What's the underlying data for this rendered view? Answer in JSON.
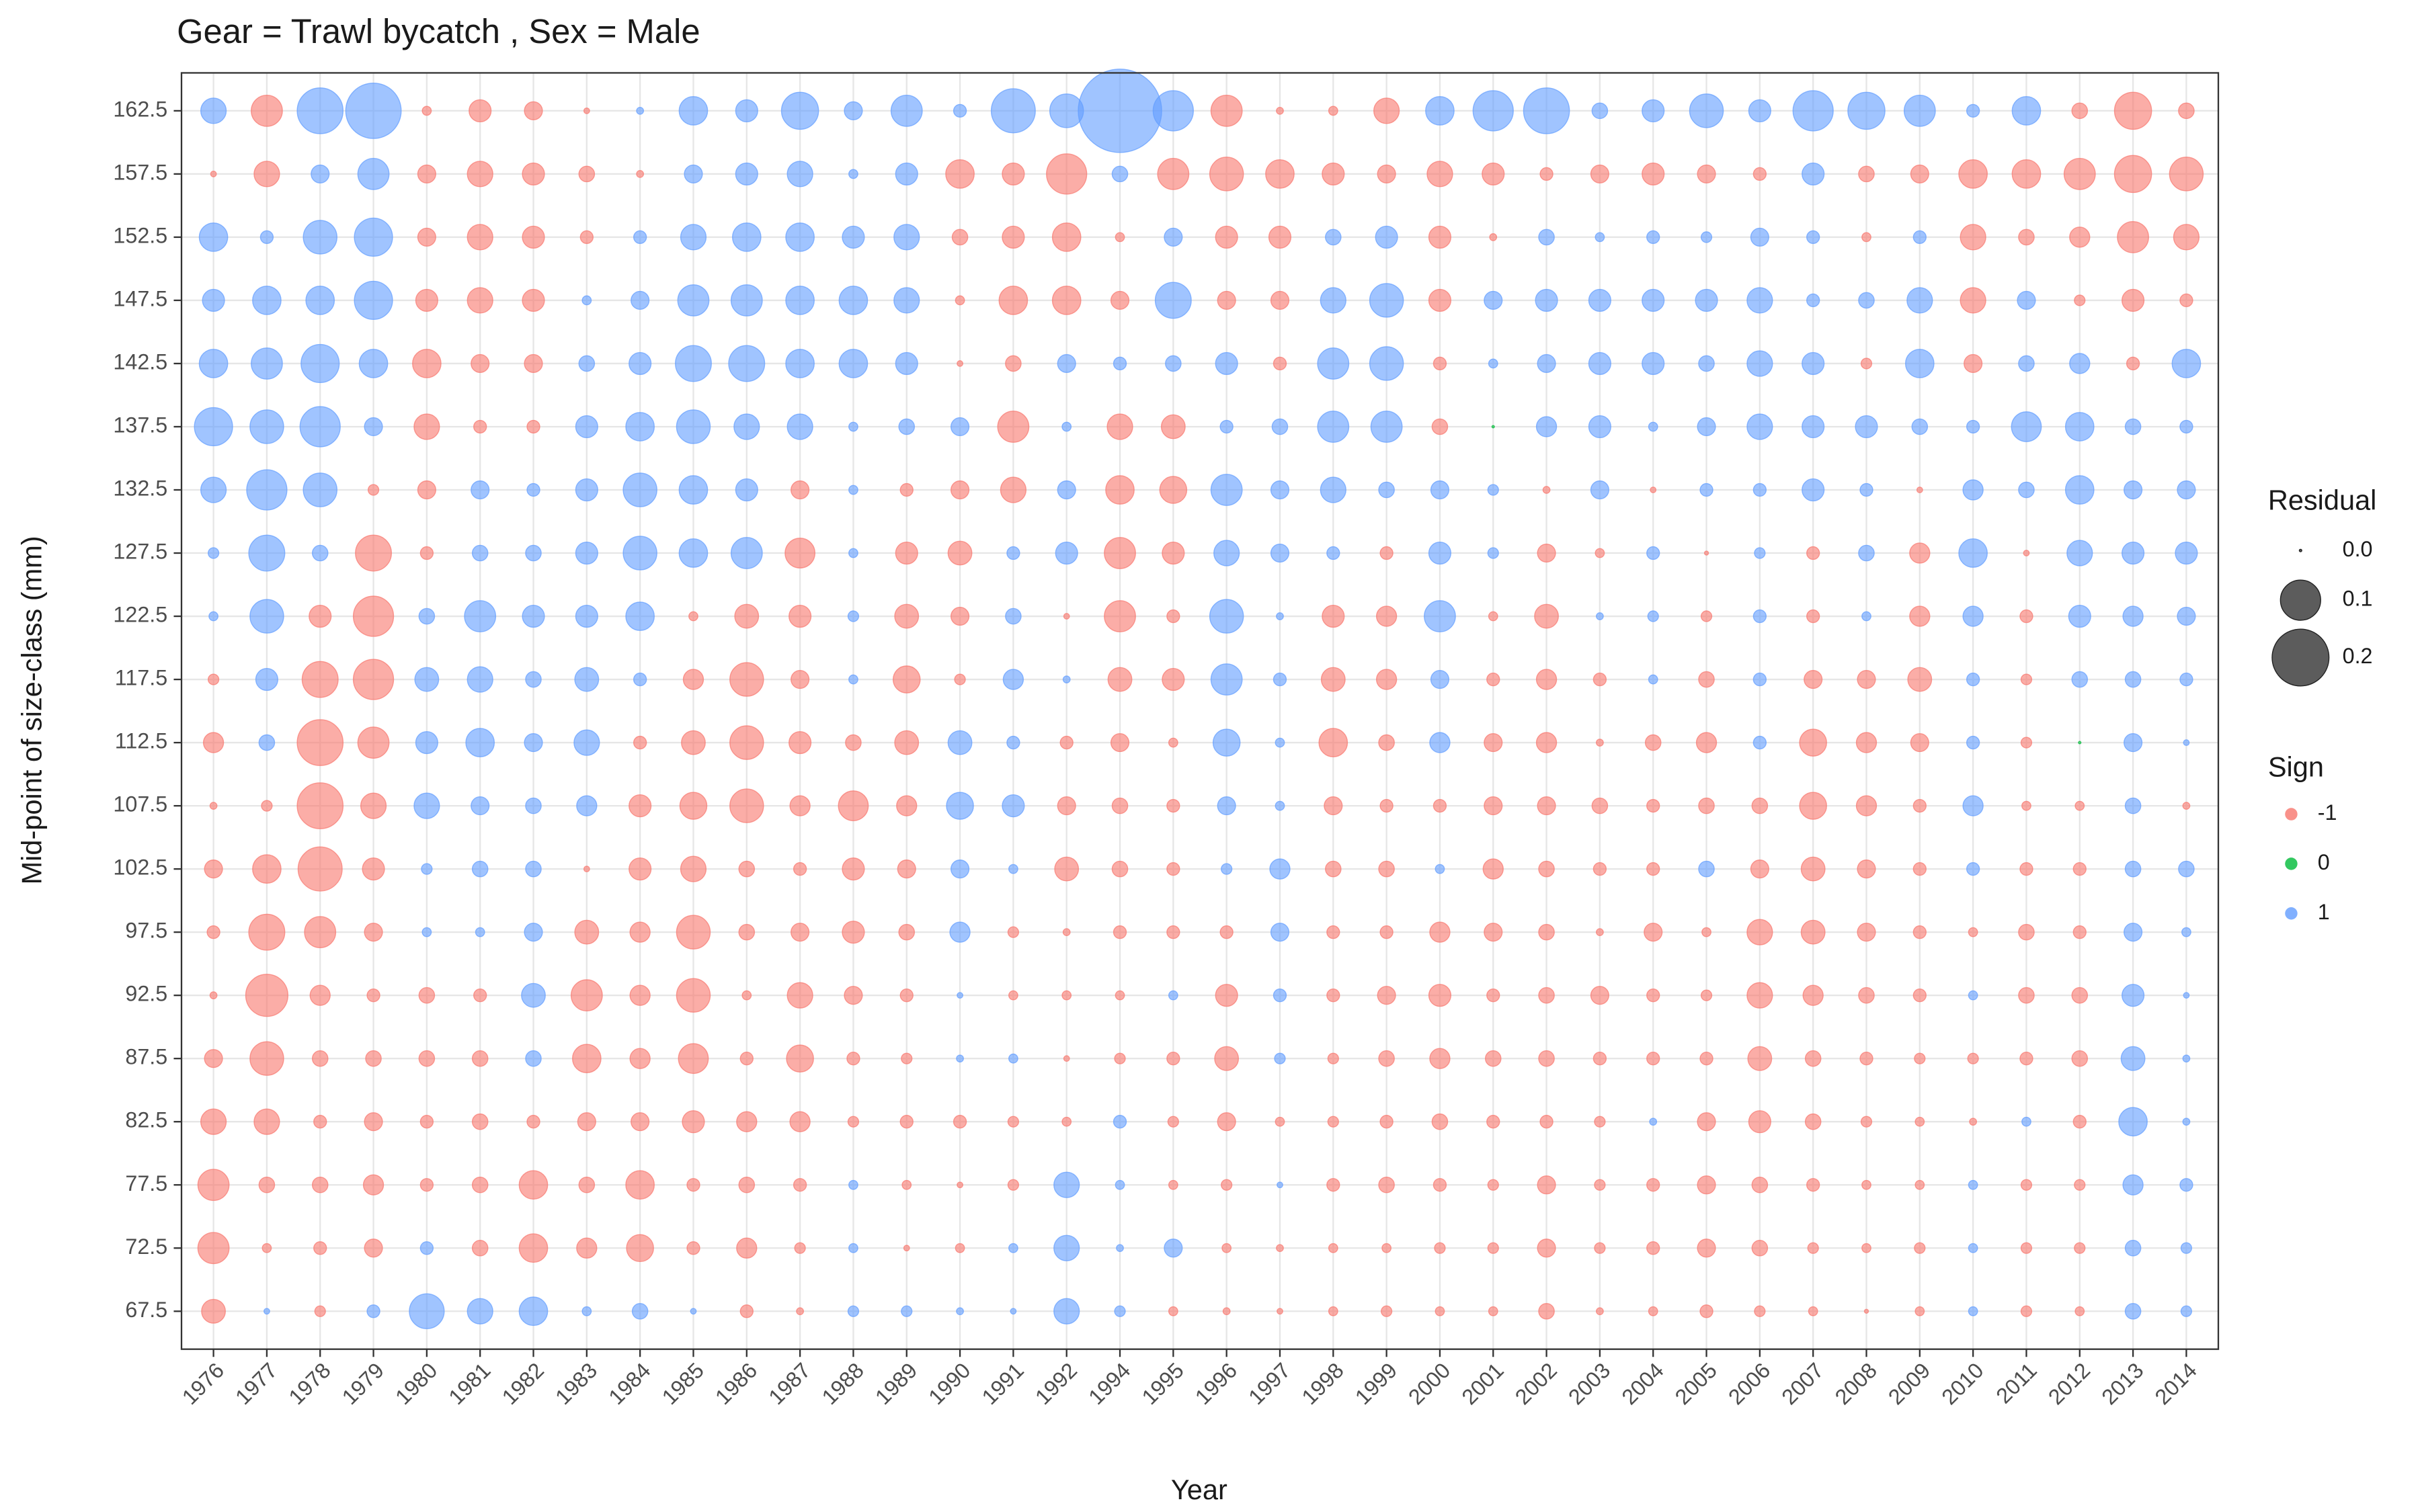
{
  "chart_data": {
    "type": "bubble",
    "title": "Gear = Trawl bycatch , Sex = Male",
    "x_label": "Year",
    "y_label": "Mid-point of size-class (mm)",
    "categories": [
      "1976",
      "1977",
      "1978",
      "1979",
      "1980",
      "1981",
      "1982",
      "1983",
      "1984",
      "1985",
      "1986",
      "1987",
      "1988",
      "1989",
      "1990",
      "1991",
      "1992",
      "1994",
      "1995",
      "1996",
      "1997",
      "1998",
      "1999",
      "2000",
      "2001",
      "2002",
      "2003",
      "2004",
      "2005",
      "2006",
      "2007",
      "2008",
      "2009",
      "2010",
      "2011",
      "2012",
      "2013",
      "2014"
    ],
    "y_categories": [
      "162.5",
      "157.5",
      "152.5",
      "147.5",
      "142.5",
      "137.5",
      "132.5",
      "127.5",
      "122.5",
      "117.5",
      "112.5",
      "107.5",
      "102.5",
      "97.5",
      "92.5",
      "87.5",
      "82.5",
      "77.5",
      "72.5",
      "67.5"
    ],
    "values": [
      [
        0.04,
        -0.06,
        0.13,
        0.19,
        -0.005,
        -0.03,
        -0.02,
        -0.002,
        0.003,
        0.05,
        0.03,
        0.085,
        0.02,
        0.06,
        0.01,
        0.12,
        0.07,
        0.43,
        0.1,
        -0.06,
        -0.003,
        -0.005,
        -0.04,
        0.05,
        0.1,
        0.13,
        0.015,
        0.03,
        0.07,
        0.03,
        0.1,
        0.085,
        0.06,
        0.01,
        0.05,
        -0.015,
        -0.085,
        -0.015
      ],
      [
        -0.002,
        -0.04,
        0.02,
        0.06,
        -0.02,
        -0.04,
        -0.03,
        -0.015,
        -0.003,
        0.02,
        0.03,
        0.04,
        0.005,
        0.03,
        -0.05,
        -0.03,
        -0.1,
        0.015,
        -0.06,
        -0.07,
        -0.05,
        -0.03,
        -0.02,
        -0.04,
        -0.03,
        -0.01,
        -0.02,
        -0.03,
        -0.02,
        -0.01,
        0.03,
        -0.015,
        -0.02,
        -0.05,
        -0.05,
        -0.06,
        -0.085,
        -0.07
      ],
      [
        0.05,
        0.01,
        0.07,
        0.09,
        -0.02,
        -0.04,
        -0.03,
        -0.01,
        0.01,
        0.04,
        0.05,
        0.05,
        0.03,
        0.04,
        -0.015,
        -0.03,
        -0.05,
        -0.005,
        0.02,
        -0.03,
        -0.03,
        0.015,
        0.03,
        -0.03,
        -0.003,
        0.015,
        0.005,
        0.01,
        0.007,
        0.02,
        0.01,
        -0.005,
        0.01,
        -0.04,
        -0.015,
        -0.025,
        -0.06,
        -0.04
      ],
      [
        0.03,
        0.05,
        0.05,
        0.09,
        -0.03,
        -0.04,
        -0.03,
        0.005,
        0.02,
        0.06,
        0.06,
        0.05,
        0.05,
        0.04,
        -0.005,
        -0.05,
        -0.05,
        -0.02,
        0.08,
        -0.02,
        -0.02,
        0.04,
        0.07,
        -0.03,
        0.02,
        0.03,
        0.03,
        0.03,
        0.03,
        0.04,
        0.01,
        0.015,
        0.04,
        -0.04,
        0.02,
        -0.007,
        -0.03,
        -0.01
      ],
      [
        0.05,
        0.06,
        0.09,
        0.05,
        -0.05,
        -0.02,
        -0.02,
        0.015,
        0.03,
        0.08,
        0.08,
        0.05,
        0.05,
        0.03,
        -0.002,
        -0.015,
        0.02,
        0.01,
        0.015,
        0.03,
        -0.01,
        0.06,
        0.07,
        -0.01,
        0.005,
        0.02,
        0.03,
        0.03,
        0.015,
        0.04,
        0.03,
        -0.007,
        0.05,
        -0.02,
        0.015,
        0.025,
        -0.01,
        0.05
      ],
      [
        0.09,
        0.07,
        0.1,
        0.02,
        -0.04,
        -0.01,
        -0.01,
        0.03,
        0.05,
        0.07,
        0.04,
        0.04,
        0.005,
        0.015,
        0.02,
        -0.06,
        0.005,
        -0.04,
        -0.035,
        0.01,
        0.015,
        0.06,
        0.06,
        -0.015,
        0,
        0.025,
        0.03,
        0.005,
        0.02,
        0.04,
        0.03,
        0.03,
        0.015,
        0.01,
        0.055,
        0.05,
        0.015,
        0.01
      ],
      [
        0.04,
        0.1,
        0.07,
        -0.007,
        -0.02,
        0.02,
        0.01,
        0.03,
        0.07,
        0.05,
        0.03,
        -0.02,
        0.005,
        -0.01,
        -0.02,
        -0.04,
        0.02,
        -0.05,
        -0.045,
        0.06,
        0.02,
        0.04,
        0.015,
        0.02,
        0.007,
        -0.003,
        0.02,
        -0.002,
        0.01,
        0.01,
        0.03,
        0.01,
        -0.002,
        0.025,
        0.015,
        0.05,
        0.02,
        0.02
      ],
      [
        0.007,
        0.08,
        0.015,
        -0.08,
        -0.01,
        0.015,
        0.015,
        0.03,
        0.07,
        0.05,
        0.06,
        -0.055,
        0.005,
        -0.03,
        -0.035,
        0.01,
        0.03,
        -0.06,
        -0.03,
        0.04,
        0.02,
        0.01,
        -0.01,
        0.03,
        0.007,
        -0.02,
        -0.005,
        0.01,
        -0.001,
        0.007,
        -0.01,
        0.015,
        -0.025,
        0.05,
        -0.002,
        0.04,
        0.03,
        0.03
      ],
      [
        0.005,
        0.07,
        -0.03,
        -0.1,
        0.015,
        0.06,
        0.03,
        0.03,
        0.05,
        -0.005,
        -0.035,
        -0.03,
        0.007,
        -0.035,
        -0.02,
        0.015,
        -0.002,
        -0.06,
        -0.01,
        0.07,
        0.003,
        -0.03,
        -0.025,
        0.06,
        -0.005,
        -0.035,
        0.003,
        0.007,
        -0.007,
        0.01,
        -0.01,
        0.005,
        -0.025,
        0.025,
        -0.01,
        0.03,
        0.025,
        0.02
      ],
      [
        -0.007,
        0.03,
        -0.08,
        -0.1,
        0.035,
        0.04,
        0.015,
        0.035,
        0.01,
        -0.025,
        -0.07,
        -0.02,
        0.005,
        -0.045,
        -0.007,
        0.025,
        0.003,
        -0.035,
        -0.03,
        0.06,
        0.01,
        -0.035,
        -0.025,
        0.02,
        -0.01,
        -0.025,
        -0.01,
        0.005,
        -0.015,
        0.01,
        -0.02,
        -0.02,
        -0.035,
        0.01,
        -0.007,
        0.015,
        0.015,
        0.01
      ],
      [
        -0.025,
        0.015,
        -0.13,
        -0.06,
        0.03,
        0.05,
        0.02,
        0.04,
        -0.01,
        -0.035,
        -0.07,
        -0.03,
        -0.015,
        -0.035,
        0.035,
        0.01,
        -0.01,
        -0.02,
        -0.005,
        0.045,
        0.005,
        -0.05,
        -0.015,
        0.025,
        -0.02,
        -0.025,
        -0.003,
        -0.015,
        -0.025,
        0.01,
        -0.045,
        -0.025,
        -0.02,
        0.01,
        -0.007,
        0,
        0.02,
        0.002
      ],
      [
        -0.003,
        -0.007,
        -0.13,
        -0.04,
        0.04,
        0.02,
        0.015,
        0.025,
        -0.03,
        -0.045,
        -0.07,
        -0.025,
        -0.055,
        -0.025,
        0.045,
        0.03,
        -0.02,
        -0.015,
        -0.01,
        0.02,
        0.005,
        -0.02,
        -0.01,
        -0.01,
        -0.02,
        -0.02,
        -0.015,
        -0.01,
        -0.015,
        -0.015,
        -0.045,
        -0.025,
        -0.01,
        0.025,
        -0.005,
        -0.005,
        0.015,
        -0.003
      ],
      [
        -0.02,
        -0.05,
        -0.12,
        -0.03,
        0.007,
        0.015,
        0.015,
        -0.002,
        -0.03,
        -0.04,
        -0.015,
        -0.01,
        -0.03,
        -0.02,
        0.02,
        0.005,
        -0.035,
        -0.015,
        -0.01,
        0.007,
        0.025,
        -0.015,
        -0.015,
        0.005,
        -0.025,
        -0.015,
        -0.01,
        -0.01,
        0.015,
        -0.02,
        -0.035,
        -0.02,
        -0.01,
        0.01,
        -0.01,
        -0.01,
        0.015,
        0.015
      ],
      [
        -0.01,
        -0.08,
        -0.06,
        -0.02,
        0.005,
        0.005,
        0.02,
        -0.035,
        -0.025,
        -0.07,
        -0.015,
        -0.02,
        -0.03,
        -0.015,
        0.025,
        -0.007,
        -0.003,
        -0.01,
        -0.01,
        -0.01,
        0.02,
        -0.01,
        -0.01,
        -0.025,
        -0.02,
        -0.015,
        -0.003,
        -0.02,
        -0.005,
        -0.04,
        -0.035,
        -0.02,
        -0.01,
        -0.005,
        -0.015,
        -0.01,
        0.02,
        0.005
      ],
      [
        -0.003,
        -0.11,
        -0.025,
        -0.01,
        -0.015,
        -0.01,
        0.035,
        -0.06,
        -0.025,
        -0.07,
        -0.005,
        -0.04,
        -0.02,
        -0.01,
        0.002,
        -0.005,
        -0.005,
        -0.005,
        0.005,
        -0.03,
        0.01,
        -0.01,
        -0.02,
        -0.03,
        -0.01,
        -0.015,
        -0.02,
        -0.01,
        -0.007,
        -0.04,
        -0.025,
        -0.015,
        -0.01,
        0.005,
        -0.015,
        -0.015,
        0.03,
        0.002
      ],
      [
        -0.02,
        -0.07,
        -0.015,
        -0.015,
        -0.015,
        -0.015,
        0.015,
        -0.05,
        -0.025,
        -0.055,
        -0.01,
        -0.045,
        -0.01,
        -0.007,
        0.003,
        0.005,
        -0.002,
        -0.007,
        -0.01,
        -0.035,
        0.007,
        -0.007,
        -0.015,
        -0.025,
        -0.015,
        -0.015,
        -0.01,
        -0.01,
        -0.01,
        -0.035,
        -0.015,
        -0.01,
        -0.007,
        -0.007,
        -0.01,
        -0.015,
        0.035,
        0.003
      ],
      [
        -0.04,
        -0.04,
        -0.01,
        -0.02,
        -0.01,
        -0.015,
        -0.01,
        -0.02,
        -0.02,
        -0.03,
        -0.025,
        -0.025,
        -0.007,
        -0.01,
        -0.01,
        -0.007,
        -0.005,
        0.01,
        -0.007,
        -0.02,
        -0.005,
        -0.007,
        -0.01,
        -0.015,
        -0.01,
        -0.01,
        -0.007,
        0.003,
        -0.02,
        -0.03,
        -0.015,
        -0.007,
        -0.005,
        -0.003,
        0.005,
        -0.01,
        0.05,
        0.003
      ],
      [
        -0.06,
        -0.015,
        -0.015,
        -0.025,
        -0.01,
        -0.015,
        -0.05,
        -0.015,
        -0.05,
        -0.01,
        -0.015,
        -0.01,
        0.005,
        -0.005,
        -0.002,
        -0.007,
        0.04,
        0.005,
        -0.005,
        -0.007,
        0.002,
        -0.01,
        -0.015,
        -0.01,
        -0.007,
        -0.02,
        -0.007,
        -0.01,
        -0.02,
        -0.015,
        -0.01,
        -0.005,
        -0.005,
        0.005,
        -0.007,
        -0.007,
        0.025,
        0.01
      ],
      [
        -0.06,
        -0.005,
        -0.01,
        -0.02,
        0.01,
        -0.015,
        -0.05,
        -0.025,
        -0.045,
        -0.01,
        -0.025,
        -0.007,
        0.005,
        -0.002,
        -0.005,
        0.005,
        0.04,
        0.003,
        0.02,
        -0.005,
        -0.003,
        -0.005,
        -0.005,
        -0.007,
        -0.007,
        -0.02,
        -0.007,
        -0.01,
        -0.02,
        -0.015,
        -0.007,
        -0.005,
        -0.007,
        0.005,
        -0.007,
        -0.007,
        0.015,
        0.007
      ],
      [
        -0.035,
        0.002,
        -0.007,
        0.01,
        0.075,
        0.04,
        0.05,
        0.005,
        0.015,
        0.002,
        -0.01,
        -0.003,
        0.007,
        0.007,
        0.003,
        0.002,
        0.04,
        0.007,
        -0.005,
        -0.003,
        -0.002,
        -0.005,
        -0.007,
        -0.005,
        -0.005,
        -0.015,
        -0.003,
        -0.005,
        -0.01,
        -0.007,
        -0.005,
        -0.001,
        -0.005,
        0.005,
        -0.007,
        -0.005,
        0.015,
        0.007
      ]
    ],
    "size_legend": {
      "title": "Residual",
      "ticks": [
        {
          "value": 0,
          "label": "0.0"
        },
        0.1,
        0.2
      ]
    },
    "sign_legend": {
      "title": "Sign",
      "values": [
        -1,
        0,
        1
      ],
      "colors": [
        "#F8766D",
        "#00BA38",
        "#619CFF"
      ]
    },
    "grid": true
  }
}
